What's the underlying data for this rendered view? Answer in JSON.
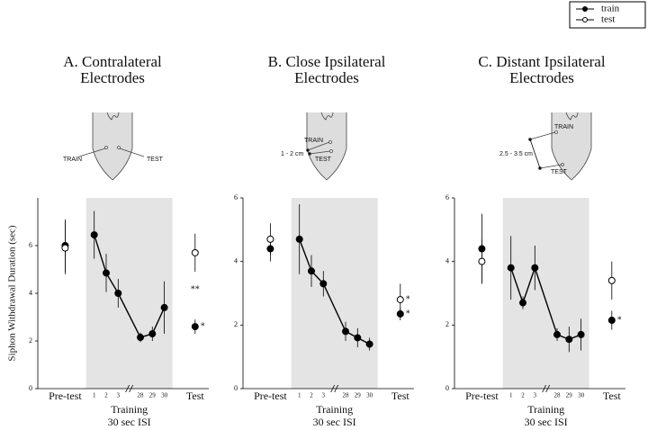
{
  "chart_data": [
    {
      "type": "line",
      "title": [
        "A. Contralateral",
        "Electrodes"
      ],
      "ylabel": "Siphon Withdrawal Duration (sec)",
      "categories": [
        "Pre-test",
        "1",
        "2",
        "3",
        "28",
        "29",
        "30",
        "Test"
      ],
      "xlabel": [
        "Training",
        "30 sec ISI"
      ],
      "ylim": [
        0,
        8
      ],
      "yticks": [
        0,
        2,
        4,
        6
      ],
      "annotations": [
        "**"
      ],
      "series": [
        {
          "name": "train",
          "color": "#000000",
          "values": [
            6.0,
            6.45,
            4.85,
            4.0,
            2.15,
            2.3,
            3.4,
            2.6
          ],
          "errors": [
            1.1,
            1.0,
            0.8,
            0.6,
            0.2,
            0.3,
            1.1,
            0.3
          ],
          "sig": "*"
        },
        {
          "name": "test",
          "color": "#ffffff",
          "values": [
            5.9,
            null,
            null,
            null,
            null,
            null,
            null,
            5.7
          ],
          "errors": [
            1.1,
            null,
            null,
            null,
            null,
            null,
            null,
            0.8
          ]
        }
      ]
    },
    {
      "type": "line",
      "title": [
        "B. Close Ipsilateral",
        "Electrodes"
      ],
      "categories": [
        "Pre-test",
        "1",
        "2",
        "3",
        "28",
        "29",
        "30",
        "Test"
      ],
      "xlabel": [
        "Training",
        "30 sec ISI"
      ],
      "ylim": [
        0,
        6
      ],
      "yticks": [
        0,
        2,
        4,
        6
      ],
      "series": [
        {
          "name": "train",
          "color": "#000000",
          "values": [
            4.4,
            4.7,
            3.7,
            3.3,
            1.8,
            1.6,
            1.4,
            2.35
          ],
          "errors": [
            0.4,
            1.1,
            0.5,
            0.4,
            0.3,
            0.3,
            0.2,
            0.2
          ],
          "sig": "*"
        },
        {
          "name": "test",
          "color": "#ffffff",
          "values": [
            4.7,
            null,
            null,
            null,
            null,
            null,
            null,
            2.8
          ],
          "errors": [
            0.5,
            null,
            null,
            null,
            null,
            null,
            null,
            0.5
          ],
          "sig": "*"
        }
      ]
    },
    {
      "type": "line",
      "title": [
        "C. Distant Ipsilateral",
        "Electrodes"
      ],
      "categories": [
        "Pre-test",
        "1",
        "2",
        "3",
        "28",
        "29",
        "30",
        "Test"
      ],
      "xlabel": [
        "Training",
        "30 sec ISI"
      ],
      "ylim": [
        0,
        6
      ],
      "yticks": [
        0,
        2,
        4,
        6
      ],
      "series": [
        {
          "name": "train",
          "color": "#000000",
          "values": [
            4.4,
            3.8,
            2.7,
            3.8,
            1.7,
            1.55,
            1.7,
            2.15
          ],
          "errors": [
            1.1,
            1.0,
            0.2,
            0.7,
            0.2,
            0.4,
            0.5,
            0.3
          ],
          "sig": "*"
        },
        {
          "name": "test",
          "color": "#ffffff",
          "values": [
            4.0,
            null,
            null,
            null,
            null,
            null,
            null,
            3.4
          ],
          "errors": [
            0.7,
            null,
            null,
            null,
            null,
            null,
            null,
            0.6
          ]
        }
      ]
    }
  ],
  "diagrams": [
    {
      "train": "TRAIN",
      "test": "TEST"
    },
    {
      "train": "TRAIN",
      "test": "TEST",
      "distance": "1 - 2 cm"
    },
    {
      "train": "TRAIN",
      "test": "TEST",
      "distance": "2.5 - 3.5 cm"
    }
  ]
}
